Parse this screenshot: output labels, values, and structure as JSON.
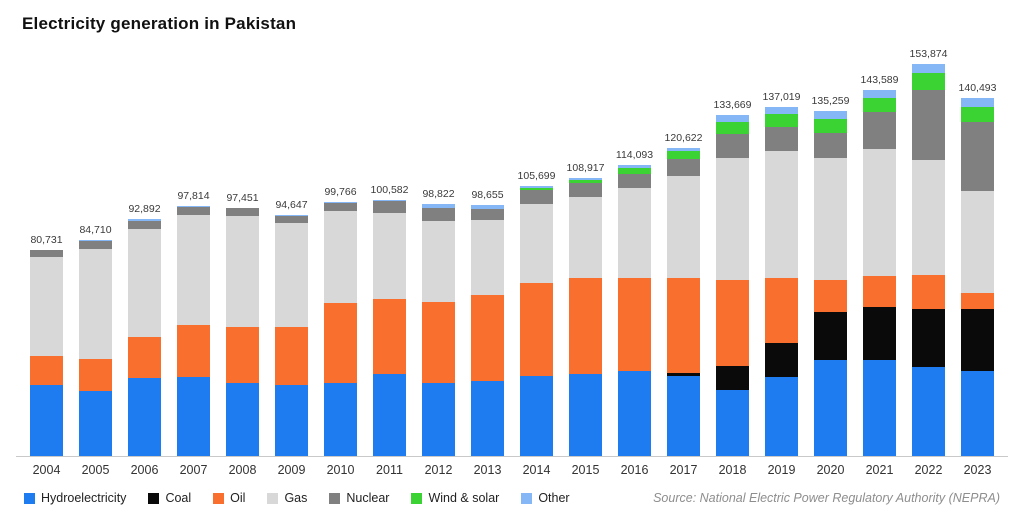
{
  "title": "Electricity generation in Pakistan",
  "source": "Source: National Electric Power Regulatory Authority (NEPRA)",
  "chart_data": {
    "type": "bar",
    "stacked": true,
    "title": "Electricity generation in Pakistan",
    "xlabel": "",
    "ylabel": "",
    "ylim": [
      0,
      160000
    ],
    "grid": false,
    "legend_position": "bottom",
    "categories": [
      "2004",
      "2005",
      "2006",
      "2007",
      "2008",
      "2009",
      "2010",
      "2011",
      "2012",
      "2013",
      "2014",
      "2015",
      "2016",
      "2017",
      "2018",
      "2019",
      "2020",
      "2021",
      "2022",
      "2023"
    ],
    "totals": [
      80731,
      84710,
      92892,
      97814,
      97451,
      94647,
      99766,
      100582,
      98822,
      98655,
      105699,
      108917,
      114093,
      120622,
      133669,
      137019,
      135259,
      143589,
      153874,
      140493
    ],
    "series": [
      {
        "name": "Hydroelectricity",
        "color": "#1f7cf0",
        "values": [
          27700,
          25700,
          30500,
          31000,
          28500,
          28000,
          28500,
          32000,
          28500,
          29500,
          31500,
          32000,
          33500,
          31500,
          26000,
          31000,
          37500,
          37500,
          35000,
          33500
        ]
      },
      {
        "name": "Coal",
        "color": "#0a0a0a",
        "values": [
          0,
          0,
          0,
          0,
          0,
          0,
          0,
          0,
          0,
          0,
          0,
          0,
          0,
          1000,
          9500,
          13500,
          19000,
          21000,
          22500,
          24000
        ]
      },
      {
        "name": "Oil",
        "color": "#f96f2e",
        "values": [
          11500,
          12500,
          16000,
          20500,
          22000,
          22500,
          31500,
          29500,
          32000,
          33500,
          36500,
          38000,
          36500,
          37500,
          33500,
          25500,
          12500,
          12000,
          13500,
          6500
        ]
      },
      {
        "name": "Gas",
        "color": "#d8d8d8",
        "values": [
          39000,
          43000,
          42500,
          43000,
          43500,
          41000,
          36000,
          34000,
          31500,
          29500,
          31000,
          31500,
          35000,
          40000,
          48000,
          49500,
          48000,
          50000,
          45000,
          40000
        ]
      },
      {
        "name": "Nuclear",
        "color": "#808080",
        "values": [
          2500,
          3100,
          3300,
          3000,
          3300,
          2800,
          3400,
          4500,
          5300,
          4500,
          5300,
          5500,
          5500,
          6500,
          9500,
          9500,
          9500,
          14500,
          27500,
          27000
        ]
      },
      {
        "name": "Wind & solar",
        "color": "#3bd233",
        "values": [
          0,
          0,
          0,
          0,
          0,
          0,
          0,
          0,
          0,
          0,
          750,
          1300,
          2500,
          3000,
          4500,
          5000,
          5500,
          5500,
          6500,
          6000
        ]
      },
      {
        "name": "Other",
        "color": "#85b6f5",
        "values": [
          31,
          410,
          592,
          314,
          151,
          347,
          366,
          582,
          1522,
          1655,
          649,
          617,
          1093,
          1122,
          2669,
          3019,
          3259,
          3089,
          3874,
          3493
        ]
      }
    ]
  }
}
